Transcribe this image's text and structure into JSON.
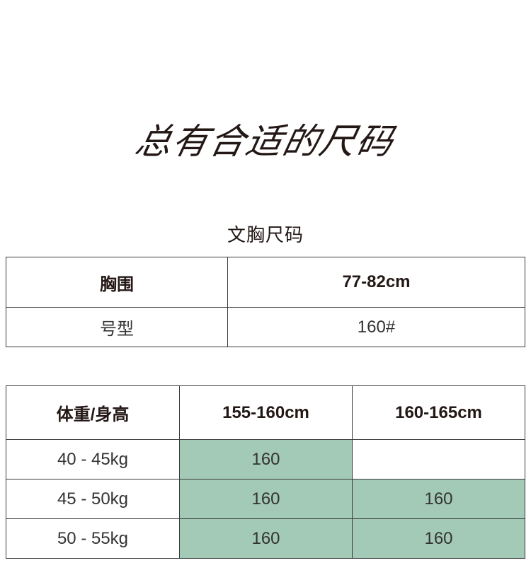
{
  "headline": "总有合适的尺码",
  "bra_section": {
    "title": "文胸尺码",
    "rows": [
      {
        "label": "胸围",
        "value": "77-82cm"
      },
      {
        "label": "号型",
        "value": "160#"
      }
    ]
  },
  "size_table": {
    "header": [
      "体重/身高",
      "155-160cm",
      "160-165cm"
    ],
    "rows": [
      {
        "label": "40 - 45kg",
        "cells": [
          "160",
          ""
        ],
        "highlighted": [
          true,
          false
        ]
      },
      {
        "label": "45 - 50kg",
        "cells": [
          "160",
          "160"
        ],
        "highlighted": [
          true,
          true
        ]
      },
      {
        "label": "50 - 55kg",
        "cells": [
          "160",
          "160"
        ],
        "highlighted": [
          true,
          true
        ]
      }
    ],
    "highlight_color": "#a3c9b7"
  }
}
